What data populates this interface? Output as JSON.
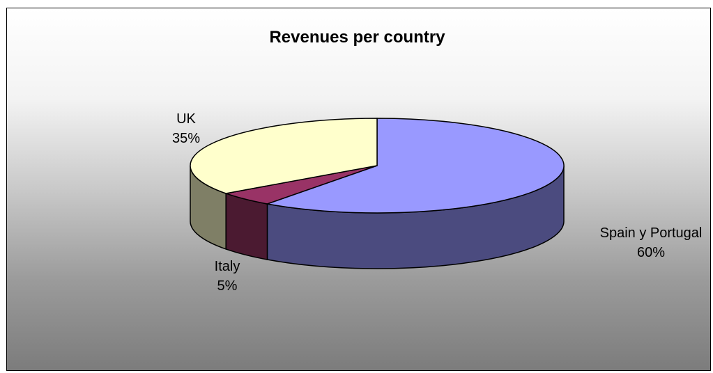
{
  "chart_data": {
    "type": "pie",
    "title": "Revenues per country",
    "three_d": true,
    "slices": [
      {
        "label": "Spain y Portugal",
        "value": 60,
        "pct_label": "60%",
        "color": "#9999ff",
        "side_color": "#4b4b7f"
      },
      {
        "label": "Italy",
        "value": 5,
        "pct_label": "5%",
        "color": "#993366",
        "side_color": "#4b1a31"
      },
      {
        "label": "UK",
        "value": 35,
        "pct_label": "35%",
        "color": "#ffffcc",
        "side_color": "#7f7f66"
      }
    ]
  }
}
